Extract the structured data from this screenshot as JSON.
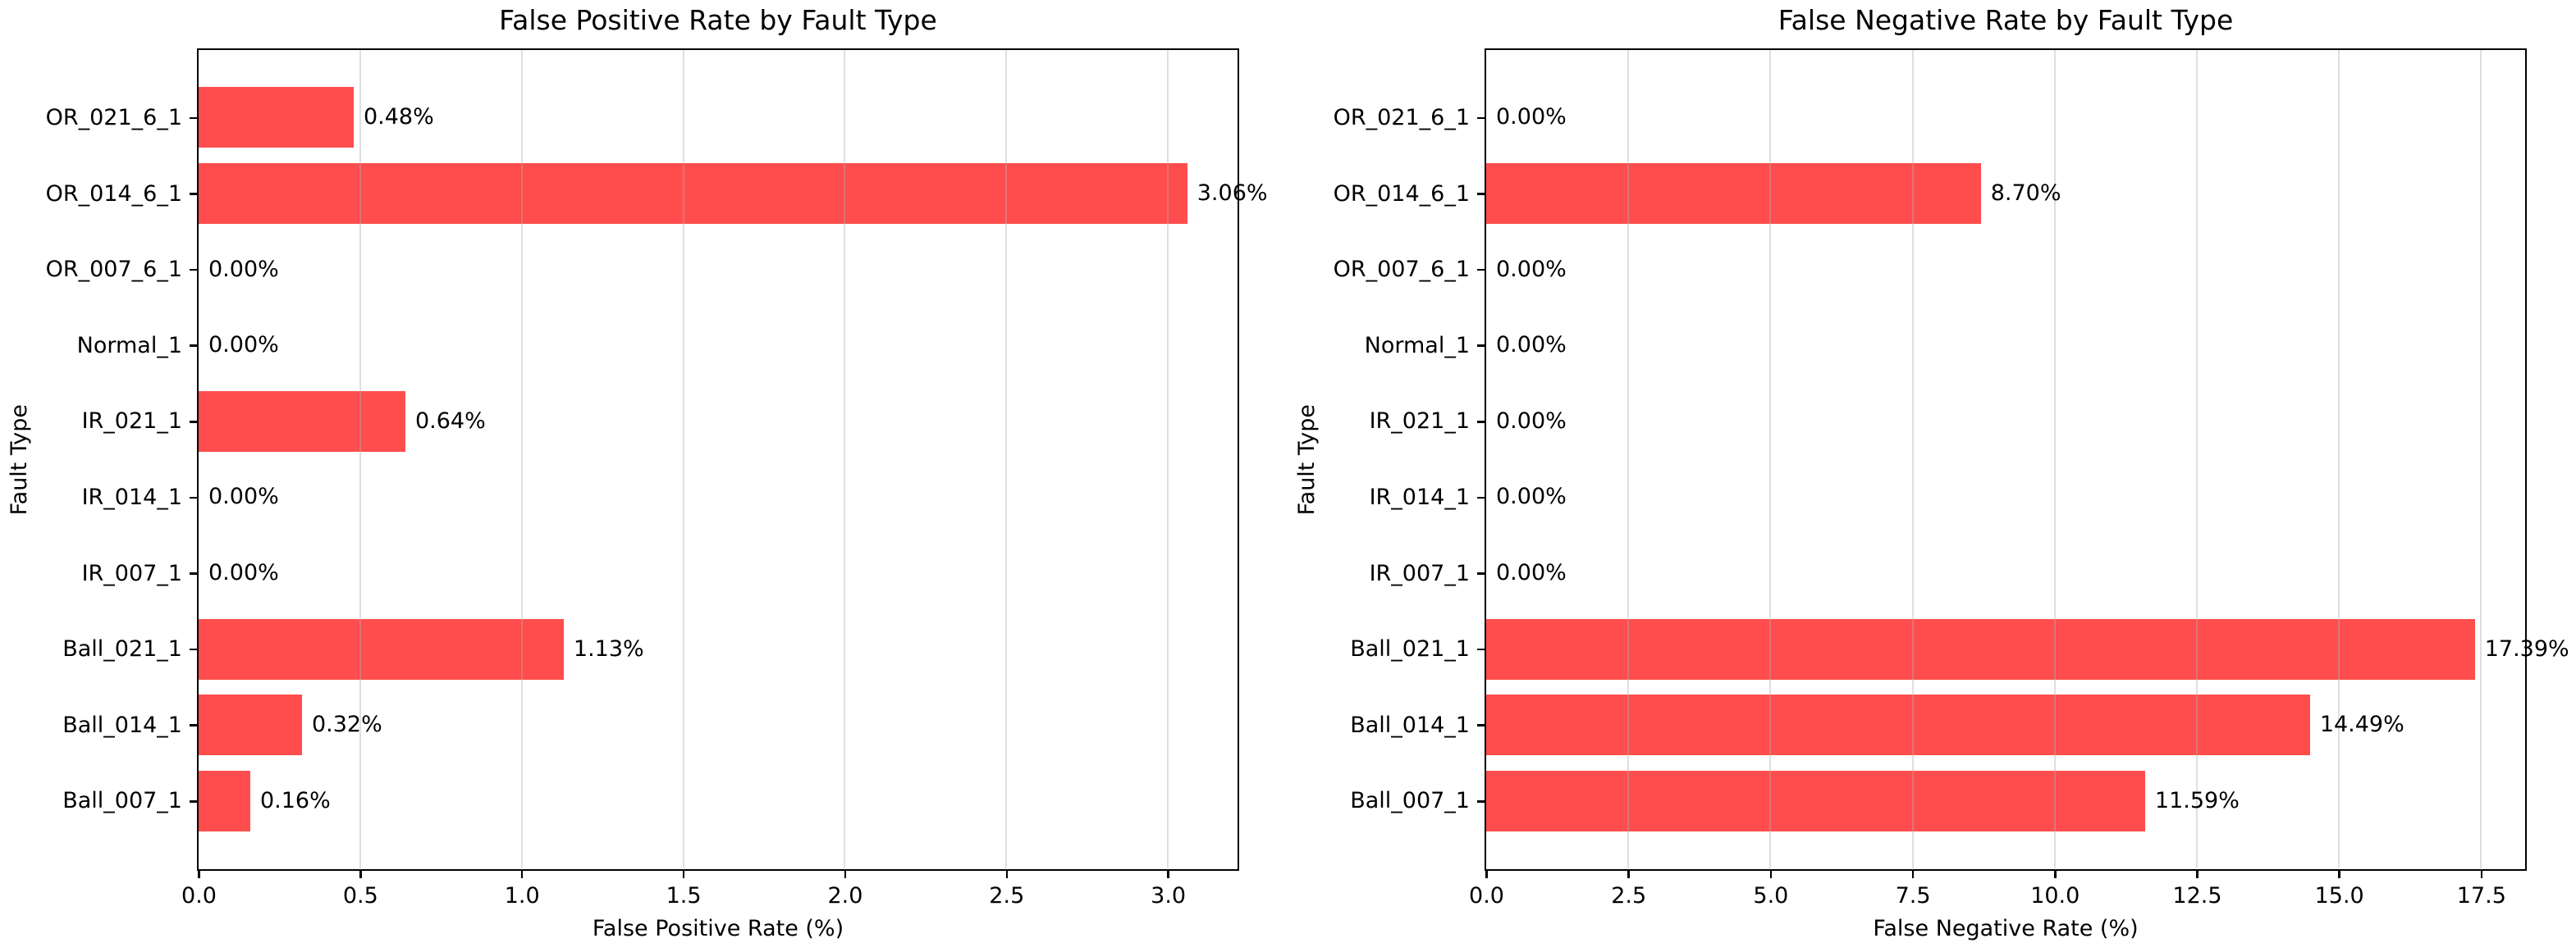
{
  "style": {
    "bar_color": "#ff4d4d",
    "grid_color": "#b0b0b0",
    "grid_opacity": 0.4,
    "spine_color": "#000000",
    "text_color": "#000000",
    "background": "#ffffff"
  },
  "chart_data": [
    {
      "type": "bar",
      "orientation": "horizontal",
      "title": "False Positive Rate by Fault Type",
      "xlabel": "False Positive Rate (%)",
      "ylabel": "Fault Type",
      "legend_position": "none",
      "grid": "x",
      "categories": [
        "OR_021_6_1",
        "OR_014_6_1",
        "OR_007_6_1",
        "Normal_1",
        "IR_021_1",
        "IR_014_1",
        "IR_007_1",
        "Ball_021_1",
        "Ball_014_1",
        "Ball_007_1"
      ],
      "values": [
        0.48,
        3.06,
        0.0,
        0.0,
        0.64,
        0.0,
        0.0,
        1.13,
        0.32,
        0.16
      ],
      "value_labels": [
        "0.48%",
        "3.06%",
        "0.00%",
        "0.00%",
        "0.64%",
        "0.00%",
        "0.00%",
        "1.13%",
        "0.32%",
        "0.16%"
      ],
      "xtick_values": [
        0.0,
        0.5,
        1.0,
        1.5,
        2.0,
        2.5,
        3.0
      ],
      "xtick_labels": [
        "0.0",
        "0.5",
        "1.0",
        "1.5",
        "2.0",
        "2.5",
        "3.0"
      ],
      "xlim": [
        0,
        3.213
      ]
    },
    {
      "type": "bar",
      "orientation": "horizontal",
      "title": "False Negative Rate by Fault Type",
      "xlabel": "False Negative Rate (%)",
      "ylabel": "Fault Type",
      "legend_position": "none",
      "grid": "x",
      "categories": [
        "OR_021_6_1",
        "OR_014_6_1",
        "OR_007_6_1",
        "Normal_1",
        "IR_021_1",
        "IR_014_1",
        "IR_007_1",
        "Ball_021_1",
        "Ball_014_1",
        "Ball_007_1"
      ],
      "values": [
        0.0,
        8.7,
        0.0,
        0.0,
        0.0,
        0.0,
        0.0,
        17.39,
        14.49,
        11.59
      ],
      "value_labels": [
        "0.00%",
        "8.70%",
        "0.00%",
        "0.00%",
        "0.00%",
        "0.00%",
        "0.00%",
        "17.39%",
        "14.49%",
        "11.59%"
      ],
      "xtick_values": [
        0.0,
        2.5,
        5.0,
        7.5,
        10.0,
        12.5,
        15.0,
        17.5
      ],
      "xtick_labels": [
        "0.0",
        "2.5",
        "5.0",
        "7.5",
        "10.0",
        "12.5",
        "15.0",
        "17.5"
      ],
      "xlim": [
        0,
        18.26
      ]
    }
  ]
}
